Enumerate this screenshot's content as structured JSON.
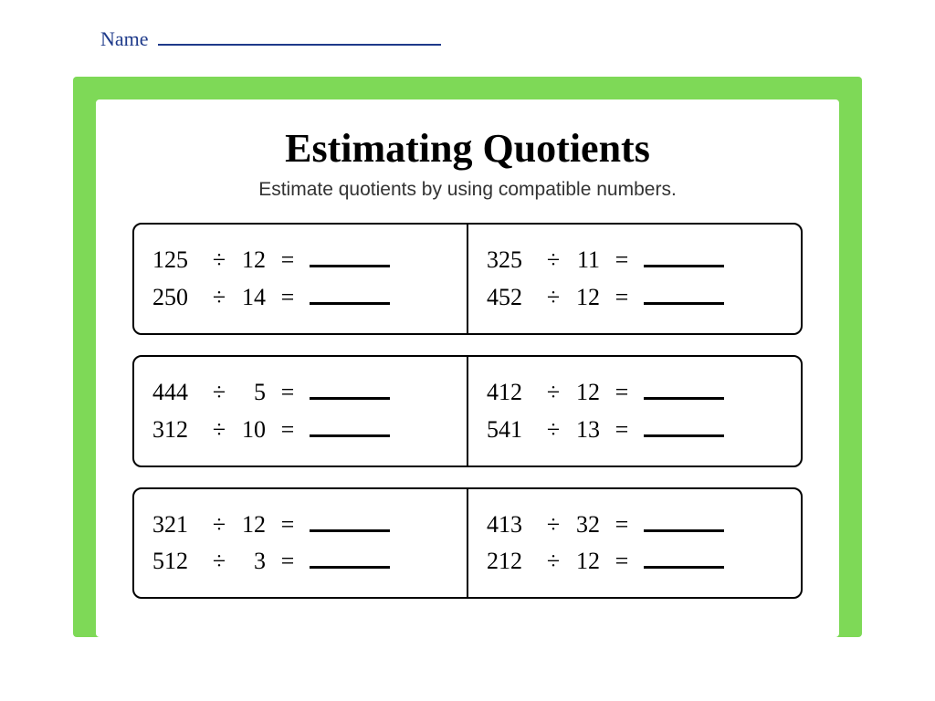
{
  "colors": {
    "page_bg": "#ffffff",
    "frame_green": "#7ed957",
    "name_ink": "#1e3a8a",
    "text_black": "#000000",
    "subtitle_grey": "#333333"
  },
  "typography": {
    "title_fontsize_pt": 33,
    "subtitle_fontsize_pt": 16,
    "problem_fontsize_pt": 20,
    "font_family": "Comic Sans MS"
  },
  "header": {
    "name_label": "Name"
  },
  "worksheet": {
    "title": "Estimating Quotients",
    "subtitle": "Estimate quotients by using compatible numbers.",
    "op_symbol": "÷",
    "eq_symbol": "=",
    "groups": [
      {
        "left": [
          {
            "dividend": "125",
            "divisor": "12"
          },
          {
            "dividend": "250",
            "divisor": "14"
          }
        ],
        "right": [
          {
            "dividend": "325",
            "divisor": "11"
          },
          {
            "dividend": "452",
            "divisor": "12"
          }
        ]
      },
      {
        "left": [
          {
            "dividend": "444",
            "divisor": "5"
          },
          {
            "dividend": "312",
            "divisor": "10"
          }
        ],
        "right": [
          {
            "dividend": "412",
            "divisor": "12"
          },
          {
            "dividend": "541",
            "divisor": "13"
          }
        ]
      },
      {
        "left": [
          {
            "dividend": "321",
            "divisor": "12"
          },
          {
            "dividend": "512",
            "divisor": "3"
          }
        ],
        "right": [
          {
            "dividend": "413",
            "divisor": "32"
          },
          {
            "dividend": "212",
            "divisor": "12"
          }
        ]
      }
    ]
  }
}
